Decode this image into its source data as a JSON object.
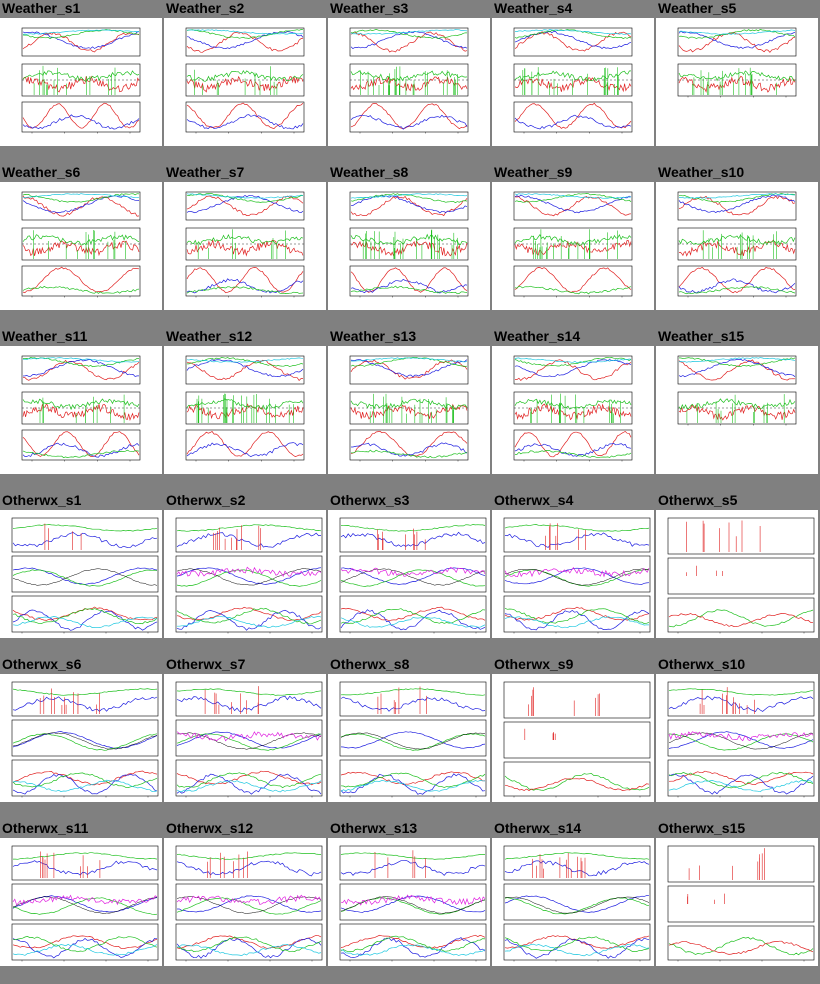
{
  "page": {
    "background": "#808080",
    "thumbnail_background": "#ffffff"
  },
  "sections": [
    {
      "name": "weather",
      "kind": "weather",
      "items": [
        {
          "label": "Weather_s1",
          "variant": "normal"
        },
        {
          "label": "Weather_s2",
          "variant": "normal"
        },
        {
          "label": "Weather_s3",
          "variant": "normal"
        },
        {
          "label": "Weather_s4",
          "variant": "normal"
        },
        {
          "label": "Weather_s5",
          "variant": "two-panel"
        },
        {
          "label": "Weather_s6",
          "variant": "normal"
        },
        {
          "label": "Weather_s7",
          "variant": "normal"
        },
        {
          "label": "Weather_s8",
          "variant": "normal"
        },
        {
          "label": "Weather_s9",
          "variant": "normal"
        },
        {
          "label": "Weather_s10",
          "variant": "normal"
        },
        {
          "label": "Weather_s11",
          "variant": "normal"
        },
        {
          "label": "Weather_s12",
          "variant": "normal"
        },
        {
          "label": "Weather_s13",
          "variant": "normal"
        },
        {
          "label": "Weather_s14",
          "variant": "normal"
        },
        {
          "label": "Weather_s15",
          "variant": "two-panel"
        }
      ]
    },
    {
      "name": "otherwx",
      "kind": "otherwx",
      "items": [
        {
          "label": "Otherwx_s1",
          "variant": "normal"
        },
        {
          "label": "Otherwx_s2",
          "variant": "normal"
        },
        {
          "label": "Otherwx_s3",
          "variant": "normal"
        },
        {
          "label": "Otherwx_s4",
          "variant": "normal"
        },
        {
          "label": "Otherwx_s5",
          "variant": "sparse"
        },
        {
          "label": "Otherwx_s6",
          "variant": "normal"
        },
        {
          "label": "Otherwx_s7",
          "variant": "normal"
        },
        {
          "label": "Otherwx_s8",
          "variant": "normal"
        },
        {
          "label": "Otherwx_s9",
          "variant": "sparse"
        },
        {
          "label": "Otherwx_s10",
          "variant": "normal"
        },
        {
          "label": "Otherwx_s11",
          "variant": "normal"
        },
        {
          "label": "Otherwx_s12",
          "variant": "normal"
        },
        {
          "label": "Otherwx_s13",
          "variant": "normal"
        },
        {
          "label": "Otherwx_s14",
          "variant": "normal"
        },
        {
          "label": "Otherwx_s15",
          "variant": "sparse"
        }
      ]
    }
  ],
  "colors": {
    "red": "#e02020",
    "green": "#20c020",
    "blue": "#2020e0",
    "cyan": "#20c8e0",
    "magenta": "#e020e0",
    "black": "#000000",
    "grey": "#888888"
  }
}
